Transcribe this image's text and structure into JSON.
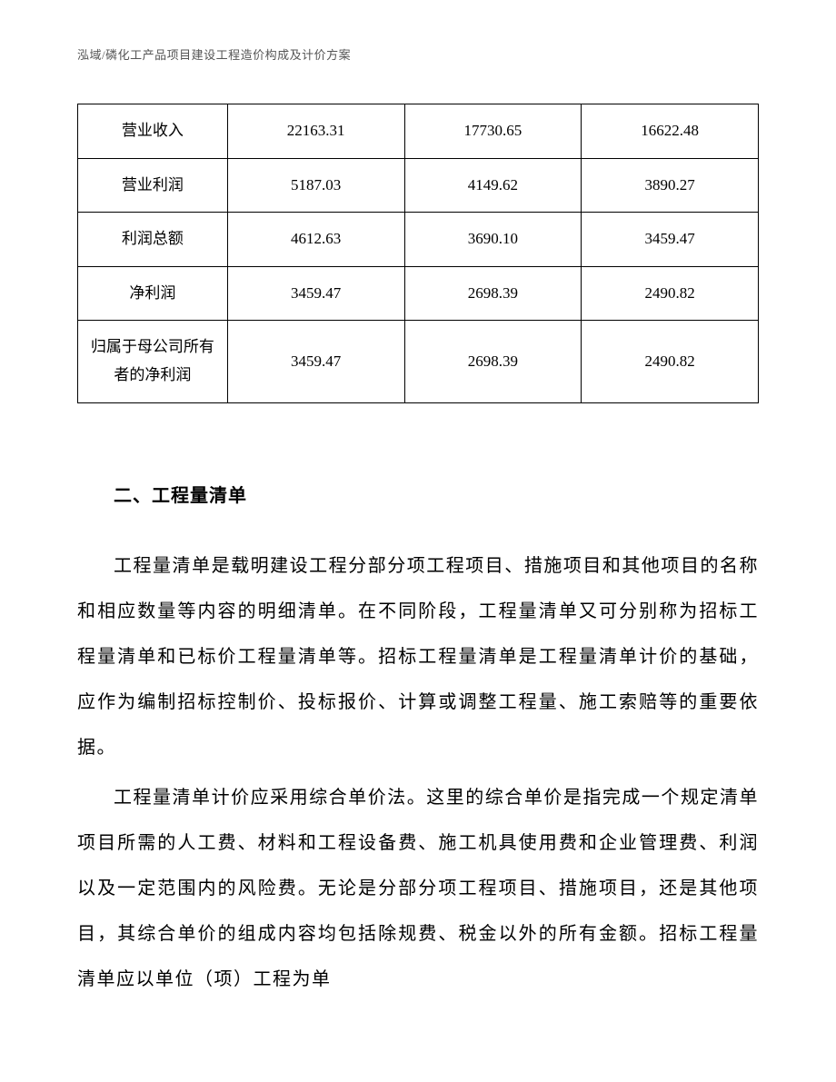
{
  "header": {
    "text": "泓域/磷化工产品项目建设工程造价构成及计价方案"
  },
  "table": {
    "rows": [
      {
        "label": "营业收入",
        "col1": "22163.31",
        "col2": "17730.65",
        "col3": "16622.48"
      },
      {
        "label": "营业利润",
        "col1": "5187.03",
        "col2": "4149.62",
        "col3": "3890.27"
      },
      {
        "label": "利润总额",
        "col1": "4612.63",
        "col2": "3690.10",
        "col3": "3459.47"
      },
      {
        "label": "净利润",
        "col1": "3459.47",
        "col2": "2698.39",
        "col3": "2490.82"
      },
      {
        "label": "归属于母公司所有者的净利润",
        "col1": "3459.47",
        "col2": "2698.39",
        "col3": "2490.82"
      }
    ]
  },
  "section": {
    "heading": "二、工程量清单",
    "paragraphs": [
      "工程量清单是载明建设工程分部分项工程项目、措施项目和其他项目的名称和相应数量等内容的明细清单。在不同阶段，工程量清单又可分别称为招标工程量清单和已标价工程量清单等。招标工程量清单是工程量清单计价的基础，应作为编制招标控制价、投标报价、计算或调整工程量、施工索赔等的重要依据。",
      "工程量清单计价应采用综合单价法。这里的综合单价是指完成一个规定清单项目所需的人工费、材料和工程设备费、施工机具使用费和企业管理费、利润以及一定范围内的风险费。无论是分部分项工程项目、措施项目，还是其他项目，其综合单价的组成内容均包括除规费、税金以外的所有金额。招标工程量清单应以单位（项）工程为单"
    ]
  },
  "styles": {
    "background_color": "#ffffff",
    "text_color": "#000000",
    "header_color": "#555555",
    "border_color": "#000000",
    "body_font_size": 20,
    "table_font_size": 17,
    "header_font_size": 13,
    "line_height": 2.5
  }
}
